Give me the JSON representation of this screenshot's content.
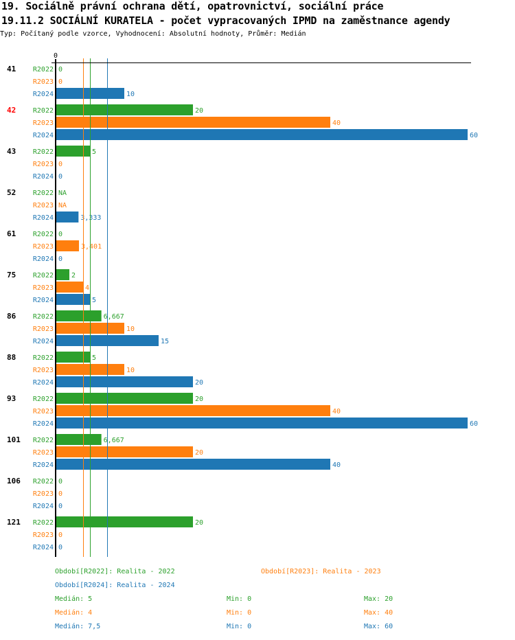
{
  "header": {
    "title": "19. Sociálně právní ochrana dětí, opatrovnictví, sociální práce",
    "subtitle": "19.11.2 SOCIÁLNÍ KURATELA - počet vypracovaných IPMD na zaměstnance agendy",
    "type_line": "Typ: Počítaný podle vzorce, Vyhodnocení: Absolutní hodnoty, Průměr: Medián"
  },
  "colors": {
    "R2022": "#2ca02c",
    "R2023": "#ff7f0e",
    "R2024": "#1f77b4",
    "highlight_category": "#ff0000",
    "axis": "#000000"
  },
  "chart_data": {
    "type": "bar",
    "orientation": "horizontal",
    "title": "19.11.2 SOCIÁLNÍ KURATELA - počet vypracovaných IPMD na zaměstnance agendy",
    "x_tick_labels": [
      "0"
    ],
    "xlim": [
      0,
      60
    ],
    "categories": [
      "41",
      "42",
      "43",
      "52",
      "61",
      "75",
      "86",
      "88",
      "93",
      "101",
      "106",
      "121"
    ],
    "highlighted_category": "42",
    "series": [
      {
        "name": "R2022",
        "values": [
          0,
          20,
          5,
          null,
          0,
          2,
          6.667,
          5,
          20,
          6.667,
          0,
          20
        ],
        "labels": [
          "0",
          "20",
          "5",
          "NA",
          "0",
          "2",
          "6,667",
          "5",
          "20",
          "6,667",
          "0",
          "20"
        ]
      },
      {
        "name": "R2023",
        "values": [
          0,
          40,
          0,
          null,
          3.401,
          4,
          10,
          10,
          40,
          20,
          0,
          0
        ],
        "labels": [
          "0",
          "40",
          "0",
          "NA",
          "3,401",
          "4",
          "10",
          "10",
          "40",
          "20",
          "0",
          "0"
        ]
      },
      {
        "name": "R2024",
        "values": [
          10,
          60,
          0,
          3.333,
          0,
          5,
          15,
          20,
          60,
          40,
          0,
          0
        ],
        "labels": [
          "10",
          "60",
          "0",
          "3,333",
          "0",
          "5",
          "15",
          "20",
          "60",
          "40",
          "0",
          "0"
        ]
      }
    ],
    "median_lines": [
      {
        "series": "R2022",
        "value": 5
      },
      {
        "series": "R2023",
        "value": 4
      },
      {
        "series": "R2024",
        "value": 7.5
      }
    ],
    "legend": [
      {
        "series": "R2022",
        "label": "Období[R2022]: Realita - 2022"
      },
      {
        "series": "R2023",
        "label": "Období[R2023]: Realita - 2023"
      },
      {
        "series": "R2024",
        "label": "Období[R2024]: Realita - 2024"
      }
    ],
    "stats": [
      {
        "series": "R2022",
        "median": "Medián: 5",
        "min": "Min: 0",
        "max": "Max: 20"
      },
      {
        "series": "R2023",
        "median": "Medián: 4",
        "min": "Min: 0",
        "max": "Max: 40"
      },
      {
        "series": "R2024",
        "median": "Medián: 7,5",
        "min": "Min: 0",
        "max": "Max: 60"
      }
    ]
  }
}
